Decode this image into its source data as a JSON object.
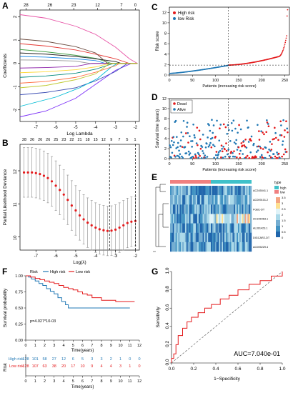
{
  "colors": {
    "high": "#e41a1c",
    "low": "#1f77b4",
    "highHeat": "#f08080",
    "lowHeat": "#3fc1c9",
    "red": "#e41a1c",
    "grey": "#888888"
  },
  "chart_data": [
    {
      "panel": "A",
      "type": "line",
      "xlabel": "Log Lambda",
      "ylabel": "Coefficients",
      "xlim": [
        -7.8,
        -1.8
      ],
      "ylim": [
        -2.5,
        2.3
      ],
      "xticks": [
        "-7",
        "-6",
        "-5",
        "-4",
        "-3",
        "-2"
      ],
      "yticks": [
        "-2",
        "-1",
        "0",
        "1",
        "2"
      ],
      "top_ticks": [
        "28",
        "26",
        "23",
        "12",
        "7",
        "0"
      ],
      "series": [
        {
          "color": "#e754a6",
          "values": [
            [
              -7.8,
              2.1
            ],
            [
              -6.5,
              1.95
            ],
            [
              -5,
              1.6
            ],
            [
              -4,
              1.25
            ],
            [
              -3,
              0.7
            ],
            [
              -2.3,
              0.2
            ],
            [
              -1.9,
              0
            ]
          ]
        },
        {
          "color": "#7b2ff7",
          "values": [
            [
              -7.8,
              -2.3
            ],
            [
              -6.5,
              -2.05
            ],
            [
              -5,
              -1.5
            ],
            [
              -4,
              -0.9
            ],
            [
              -3,
              -0.3
            ],
            [
              -2.2,
              0
            ],
            [
              -1.9,
              0
            ]
          ]
        },
        {
          "color": "#3f51b5",
          "values": [
            [
              -7.8,
              -1.35
            ],
            [
              -6.5,
              -1.25
            ],
            [
              -5,
              -1.05
            ],
            [
              -4,
              -0.75
            ],
            [
              -3,
              -0.35
            ],
            [
              -2.4,
              0
            ],
            [
              -1.9,
              0
            ]
          ]
        },
        {
          "color": "#00bcd4",
          "values": [
            [
              -7.8,
              -1.85
            ],
            [
              -6,
              -1.45
            ],
            [
              -4.8,
              -1.05
            ],
            [
              -3.9,
              -0.65
            ],
            [
              -3.2,
              -0.15
            ],
            [
              -2.9,
              0
            ],
            [
              -1.9,
              0
            ]
          ]
        },
        {
          "color": "#e53935",
          "values": [
            [
              -7.8,
              0.85
            ],
            [
              -6.5,
              0.75
            ],
            [
              -5,
              0.58
            ],
            [
              -4,
              0.4
            ],
            [
              -3,
              0.2
            ],
            [
              -2.3,
              0
            ],
            [
              -1.9,
              0
            ]
          ]
        },
        {
          "color": "#43a047",
          "values": [
            [
              -7.8,
              0.6
            ],
            [
              -6.5,
              0.5
            ],
            [
              -5,
              0.35
            ],
            [
              -4,
              0.22
            ],
            [
              -3.2,
              0
            ],
            [
              -1.9,
              0
            ]
          ]
        },
        {
          "color": "#212121",
          "values": [
            [
              -7.8,
              0.45
            ],
            [
              -6.5,
              0.4
            ],
            [
              -5,
              0.3
            ],
            [
              -4,
              0.2
            ],
            [
              -3,
              0.08
            ],
            [
              -2.7,
              0
            ],
            [
              -1.9,
              0
            ]
          ]
        },
        {
          "color": "#1e88e5",
          "values": [
            [
              -7.8,
              0.3
            ],
            [
              -6.5,
              0.27
            ],
            [
              -5,
              0.2
            ],
            [
              -4,
              0.12
            ],
            [
              -3.5,
              0
            ],
            [
              -1.9,
              0
            ]
          ]
        },
        {
          "color": "#9e9e9e",
          "values": [
            [
              -7.8,
              0.15
            ],
            [
              -6.5,
              0.14
            ],
            [
              -5,
              0.1
            ],
            [
              -4.3,
              0
            ],
            [
              -1.9,
              0
            ]
          ]
        },
        {
          "color": "#8e24aa",
          "values": [
            [
              -7.8,
              -0.2
            ],
            [
              -6.5,
              -0.18
            ],
            [
              -5,
              -0.13
            ],
            [
              -4.2,
              0
            ],
            [
              -1.9,
              0
            ]
          ]
        },
        {
          "color": "#fdd835",
          "values": [
            [
              -7.8,
              -0.4
            ],
            [
              -6.5,
              -0.36
            ],
            [
              -5,
              -0.27
            ],
            [
              -4,
              -0.15
            ],
            [
              -3.3,
              0
            ],
            [
              -1.9,
              0
            ]
          ]
        },
        {
          "color": "#00897b",
          "values": [
            [
              -7.8,
              -0.6
            ],
            [
              -6.5,
              -0.54
            ],
            [
              -5,
              -0.42
            ],
            [
              -4,
              -0.25
            ],
            [
              -3.1,
              0
            ],
            [
              -1.9,
              0
            ]
          ]
        },
        {
          "color": "#ff7043",
          "values": [
            [
              -7.8,
              -0.85
            ],
            [
              -6.5,
              -0.78
            ],
            [
              -5,
              -0.6
            ],
            [
              -4,
              -0.38
            ],
            [
              -3,
              -0.1
            ],
            [
              -2.8,
              0
            ],
            [
              -1.9,
              0
            ]
          ]
        },
        {
          "color": "#6d4c41",
          "values": [
            [
              -7.8,
              1.05
            ],
            [
              -6.5,
              0.95
            ],
            [
              -5,
              0.72
            ],
            [
              -4,
              0.45
            ],
            [
              -3.4,
              0
            ],
            [
              -1.9,
              0
            ]
          ]
        },
        {
          "color": "#c0ca33",
          "values": [
            [
              -7.8,
              -1.05
            ],
            [
              -6.5,
              -0.95
            ],
            [
              -5,
              -0.7
            ],
            [
              -4,
              -0.45
            ],
            [
              -3.3,
              0
            ],
            [
              -1.9,
              0
            ]
          ]
        }
      ]
    },
    {
      "panel": "B",
      "type": "scatter",
      "xlabel": "Log(λ)",
      "ylabel": "Partial Likelihood Deviance",
      "xlim": [
        -7.8,
        -1.8
      ],
      "ylim": [
        9.6,
        12.8
      ],
      "xticks": [
        "-7",
        "-6",
        "-5",
        "-4",
        "-3",
        "-2"
      ],
      "yticks": [
        "10",
        "11",
        "12"
      ],
      "top_ticks": [
        "28",
        "26",
        "26",
        "26",
        "25",
        "23",
        "22",
        "21",
        "18",
        "15",
        "12",
        "9",
        "7",
        "5",
        "1"
      ],
      "vlines": [
        -3.3,
        -2.0
      ],
      "points": [
        [
          -7.6,
          11.95
        ],
        [
          -7.4,
          11.95
        ],
        [
          -7.2,
          11.95
        ],
        [
          -7.0,
          11.93
        ],
        [
          -6.8,
          11.9
        ],
        [
          -6.6,
          11.85
        ],
        [
          -6.4,
          11.78
        ],
        [
          -6.2,
          11.68
        ],
        [
          -6.0,
          11.55
        ],
        [
          -5.8,
          11.42
        ],
        [
          -5.6,
          11.28
        ],
        [
          -5.4,
          11.12
        ],
        [
          -5.2,
          10.95
        ],
        [
          -5.0,
          10.8
        ],
        [
          -4.8,
          10.65
        ],
        [
          -4.6,
          10.53
        ],
        [
          -4.4,
          10.43
        ],
        [
          -4.2,
          10.35
        ],
        [
          -4.0,
          10.28
        ],
        [
          -3.8,
          10.23
        ],
        [
          -3.6,
          10.2
        ],
        [
          -3.4,
          10.18
        ],
        [
          -3.2,
          10.19
        ],
        [
          -3.0,
          10.22
        ],
        [
          -2.8,
          10.28
        ],
        [
          -2.6,
          10.35
        ],
        [
          -2.4,
          10.42
        ],
        [
          -2.2,
          10.46
        ],
        [
          -2.0,
          10.48
        ]
      ],
      "err": 0.75
    },
    {
      "panel": "C",
      "type": "scatter",
      "xlabel": "Patients (increasing risk score)",
      "ylabel": "Risk score",
      "xlim": [
        0,
        260
      ],
      "ylim": [
        0,
        13
      ],
      "xticks": [
        "0",
        "50",
        "100",
        "150",
        "200",
        "250"
      ],
      "yticks": [
        "0",
        "2",
        "4",
        "6",
        "8",
        "10",
        "12"
      ],
      "legend": [
        "High risk",
        "low Risk"
      ],
      "cutoff_x": 128,
      "cutoff_y": 1.9
    },
    {
      "panel": "D",
      "type": "scatter",
      "xlabel": "Patients (increasing risk score)",
      "ylabel": "Survival time (years)",
      "xlim": [
        0,
        260
      ],
      "ylim": [
        0,
        12
      ],
      "xticks": [
        "0",
        "50",
        "100",
        "150",
        "200",
        "250"
      ],
      "yticks": [
        "0",
        "2",
        "4",
        "6",
        "8",
        "10",
        "12"
      ],
      "legend": [
        "Dead",
        "Alive"
      ],
      "cutoff_x": 128
    },
    {
      "panel": "E",
      "type": "heatmap",
      "genes": [
        "AC245041.1",
        "AC009101.2",
        "FGB1-DT",
        "AC106463.1",
        "AL391423.1",
        "DIGCAR2-DT",
        "AC005229.4"
      ],
      "type_label": "type",
      "legend_groups": [
        "high",
        "low"
      ],
      "scale_ticks": [
        "3.5",
        "3",
        "2.5",
        "2",
        "1.5",
        "1",
        "0.5",
        "0"
      ]
    },
    {
      "panel": "F",
      "type": "line",
      "xlabel": "Time(years)",
      "ylabel": "Survival probability",
      "xlim": [
        0,
        12
      ],
      "ylim": [
        0,
        1
      ],
      "xticks": [
        "0",
        "1",
        "2",
        "3",
        "4",
        "5",
        "6",
        "7",
        "8",
        "9",
        "10",
        "11",
        "12"
      ],
      "yticks": [
        "0.00",
        "0.25",
        "0.50",
        "0.75",
        "1.00"
      ],
      "legend_title": "Risk",
      "legend": [
        "High risk",
        "Low risk"
      ],
      "pvalue": "p=4.027*10-03",
      "series": [
        {
          "name": "High risk",
          "values": [
            [
              0,
              1
            ],
            [
              0.3,
              0.98
            ],
            [
              0.6,
              0.95
            ],
            [
              1,
              0.92
            ],
            [
              1.4,
              0.88
            ],
            [
              1.8,
              0.85
            ],
            [
              2.2,
              0.8
            ],
            [
              2.6,
              0.76
            ],
            [
              3,
              0.72
            ],
            [
              3.4,
              0.66
            ],
            [
              3.8,
              0.6
            ],
            [
              4.2,
              0.55
            ],
            [
              4.5,
              0.5
            ],
            [
              6,
              0.5
            ],
            [
              11,
              0.5
            ]
          ]
        },
        {
          "name": "Low risk",
          "values": [
            [
              0,
              1
            ],
            [
              0.5,
              0.98
            ],
            [
              1,
              0.96
            ],
            [
              1.5,
              0.94
            ],
            [
              2,
              0.92
            ],
            [
              2.5,
              0.9
            ],
            [
              3,
              0.88
            ],
            [
              3.5,
              0.85
            ],
            [
              4,
              0.82
            ],
            [
              4.5,
              0.8
            ],
            [
              5,
              0.78
            ],
            [
              5.5,
              0.75
            ],
            [
              6,
              0.72
            ],
            [
              6.5,
              0.7
            ],
            [
              7,
              0.66
            ],
            [
              8,
              0.62
            ],
            [
              9.5,
              0.6
            ],
            [
              11.5,
              0.6
            ]
          ]
        }
      ]
    },
    {
      "panel": "F-table",
      "type": "table",
      "title": "Risk",
      "xlabel": "Time(years)",
      "rows": [
        {
          "label": "High risk",
          "values": [
            "128",
            "101",
            "58",
            "27",
            "12",
            "6",
            "5",
            "3",
            "3",
            "2",
            "1",
            "0",
            "0"
          ]
        },
        {
          "label": "Low risk",
          "values": [
            "128",
            "107",
            "63",
            "38",
            "20",
            "17",
            "10",
            "9",
            "4",
            "4",
            "3",
            "1",
            "0"
          ]
        }
      ]
    },
    {
      "panel": "G",
      "type": "line",
      "xlabel": "1−Specificity",
      "ylabel": "Sensitivity",
      "xlim": [
        0,
        1
      ],
      "ylim": [
        0,
        1
      ],
      "xticks": [
        "0.0",
        "0.2",
        "0.4",
        "0.6",
        "0.8",
        "1.0"
      ],
      "yticks": [
        "0.0",
        "0.2",
        "0.4",
        "0.6",
        "0.8",
        "1.0"
      ],
      "auc_label": "AUC=7.040e-01",
      "roc": [
        [
          0,
          0
        ],
        [
          0,
          0.05
        ],
        [
          0.02,
          0.1
        ],
        [
          0.04,
          0.2
        ],
        [
          0.06,
          0.3
        ],
        [
          0.1,
          0.38
        ],
        [
          0.14,
          0.45
        ],
        [
          0.18,
          0.5
        ],
        [
          0.24,
          0.55
        ],
        [
          0.3,
          0.6
        ],
        [
          0.36,
          0.64
        ],
        [
          0.44,
          0.7
        ],
        [
          0.52,
          0.74
        ],
        [
          0.6,
          0.8
        ],
        [
          0.7,
          0.86
        ],
        [
          0.8,
          0.9
        ],
        [
          0.9,
          0.95
        ],
        [
          1,
          1
        ]
      ]
    }
  ]
}
